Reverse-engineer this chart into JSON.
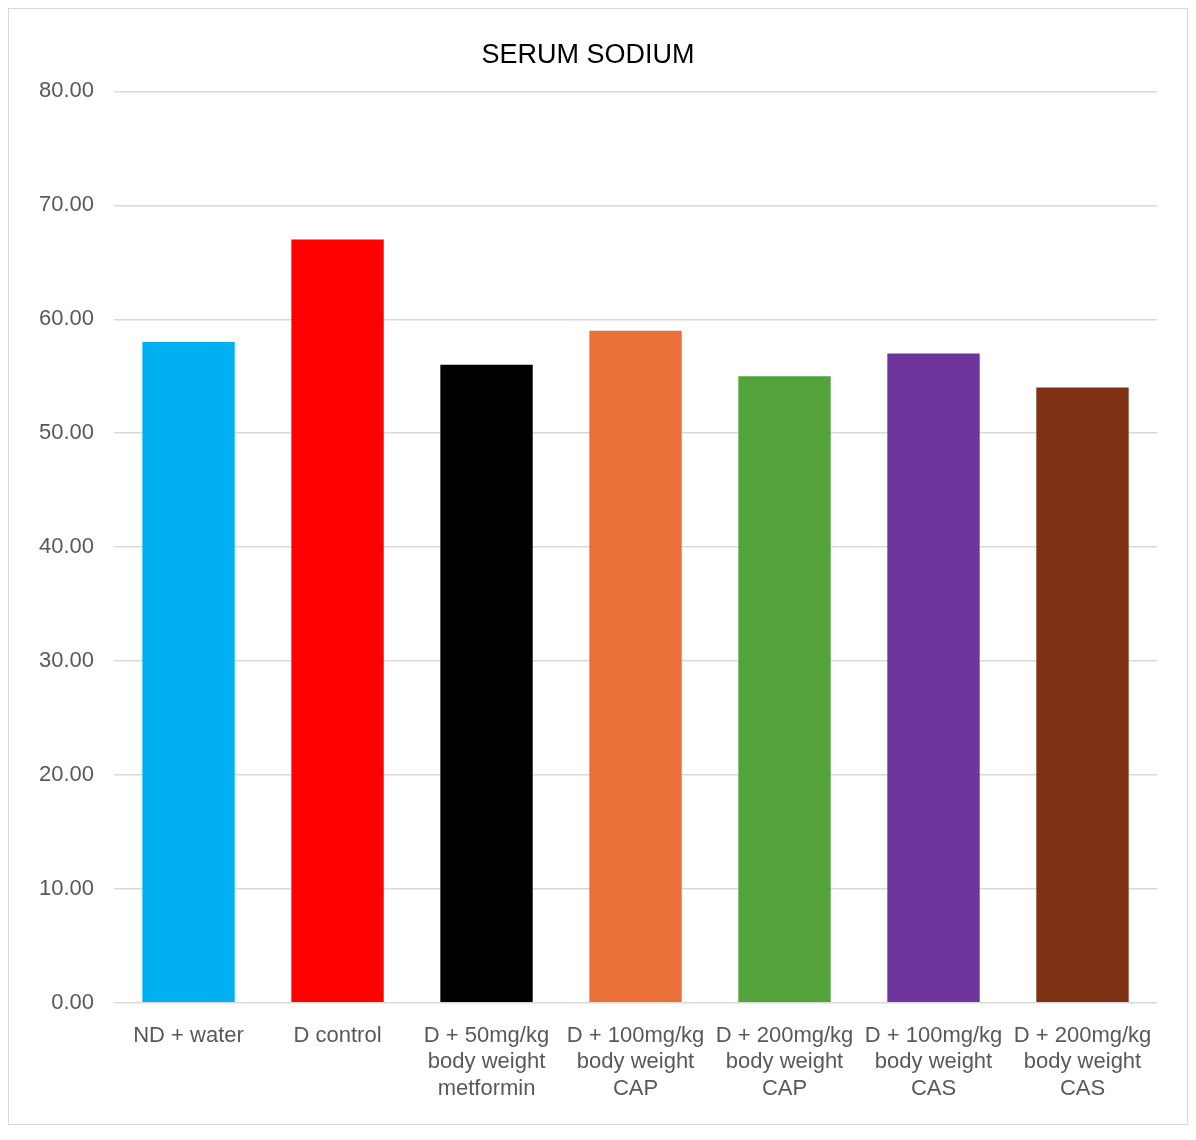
{
  "chart_data": {
    "type": "bar",
    "title": "SERUM SODIUM",
    "categories": [
      "ND + water",
      "D control",
      "D + 50mg/kg body weight metformin",
      "D + 100mg/kg body weight CAP",
      "D + 200mg/kg body weight CAP",
      "D + 100mg/kg body weight CAS",
      "D + 200mg/kg body weight CAS"
    ],
    "values": [
      58,
      67,
      56,
      59,
      55,
      57,
      54
    ],
    "colors": [
      "#00b0f0",
      "#ff0000",
      "#000000",
      "#ea7037",
      "#53a33a",
      "#6e359c",
      "#7f3213"
    ],
    "ylim": [
      0,
      80
    ],
    "yticks": [
      {
        "value": 0,
        "label": "0.00"
      },
      {
        "value": 10,
        "label": "10.00"
      },
      {
        "value": 20,
        "label": "20.00"
      },
      {
        "value": 30,
        "label": "30.00"
      },
      {
        "value": 40,
        "label": "40.00"
      },
      {
        "value": 50,
        "label": "50.00"
      },
      {
        "value": 60,
        "label": "60.00"
      },
      {
        "value": 70,
        "label": "70.00"
      },
      {
        "value": 80,
        "label": "80.00"
      }
    ],
    "grid": "y",
    "legend": false
  }
}
